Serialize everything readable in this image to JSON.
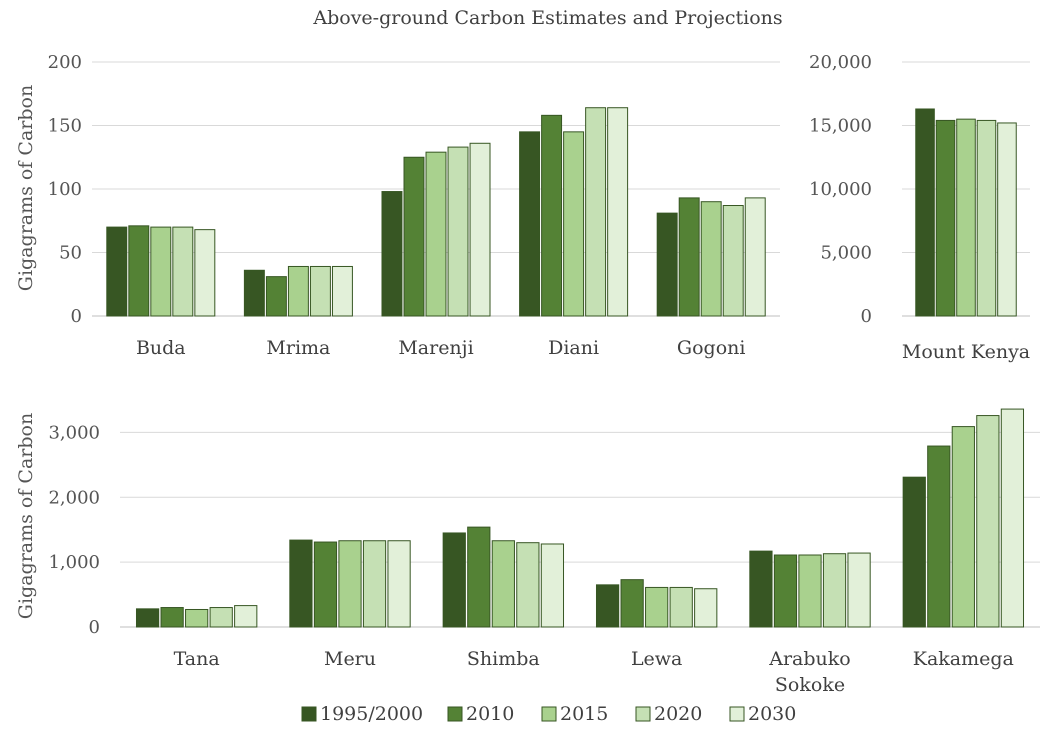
{
  "title": "Above-ground Carbon Estimates and Projections",
  "series_colors": [
    "#375623",
    "#548235",
    "#a9d18e",
    "#c5e0b4",
    "#e2f0d9"
  ],
  "chart_data": [
    {
      "type": "bar",
      "title": "Above-ground Carbon Estimates and Projections",
      "ylabel": "Gigagrams of Carbon",
      "ylim": [
        0,
        200
      ],
      "yticks": [
        0,
        50,
        100,
        150,
        200
      ],
      "ytick_labels": [
        "0",
        "50",
        "100",
        "150",
        "200"
      ],
      "categories": [
        "Buda",
        "Mrima",
        "Marenji",
        "Diani",
        "Gogoni"
      ],
      "series": [
        {
          "name": "1995/2000",
          "values": [
            70,
            36,
            98,
            145,
            81
          ]
        },
        {
          "name": "2010",
          "values": [
            71,
            31,
            125,
            158,
            93
          ]
        },
        {
          "name": "2015",
          "values": [
            70,
            39,
            129,
            145,
            90
          ]
        },
        {
          "name": "2020",
          "values": [
            70,
            39,
            133,
            164,
            87
          ]
        },
        {
          "name": "2030",
          "values": [
            68,
            39,
            136,
            164,
            93
          ]
        }
      ],
      "grid": true
    },
    {
      "type": "bar",
      "ylim": [
        0,
        20000
      ],
      "yticks": [
        0,
        5000,
        10000,
        15000,
        20000
      ],
      "ytick_labels": [
        "0",
        "5,000",
        "10,000",
        "15,000",
        "20,000"
      ],
      "categories": [
        "Mount Kenya"
      ],
      "series": [
        {
          "name": "1995/2000",
          "values": [
            16300
          ]
        },
        {
          "name": "2010",
          "values": [
            15400
          ]
        },
        {
          "name": "2015",
          "values": [
            15500
          ]
        },
        {
          "name": "2020",
          "values": [
            15400
          ]
        },
        {
          "name": "2030",
          "values": [
            15200
          ]
        }
      ],
      "grid": true
    },
    {
      "type": "bar",
      "ylabel": "Gigagrams of Carbon",
      "ylim": [
        0,
        3500
      ],
      "yticks": [
        0,
        1000,
        2000,
        3000
      ],
      "ytick_labels": [
        "0",
        "1,000",
        "2,000",
        "3,000"
      ],
      "categories": [
        "Tana",
        "Meru",
        "Shimba",
        "Lewa",
        "Arabuko Sokoke",
        "Kakamega"
      ],
      "series": [
        {
          "name": "1995/2000",
          "values": [
            280,
            1340,
            1450,
            650,
            1170,
            2310
          ]
        },
        {
          "name": "2010",
          "values": [
            300,
            1310,
            1540,
            730,
            1110,
            2790
          ]
        },
        {
          "name": "2015",
          "values": [
            270,
            1330,
            1330,
            610,
            1110,
            3090
          ]
        },
        {
          "name": "2020",
          "values": [
            300,
            1330,
            1300,
            610,
            1130,
            3260
          ]
        },
        {
          "name": "2030",
          "values": [
            330,
            1330,
            1280,
            590,
            1140,
            3360
          ]
        }
      ],
      "grid": true
    }
  ],
  "legend": {
    "position": "bottom",
    "labels": [
      "1995/2000",
      "2010",
      "2015",
      "2020",
      "2030"
    ]
  }
}
